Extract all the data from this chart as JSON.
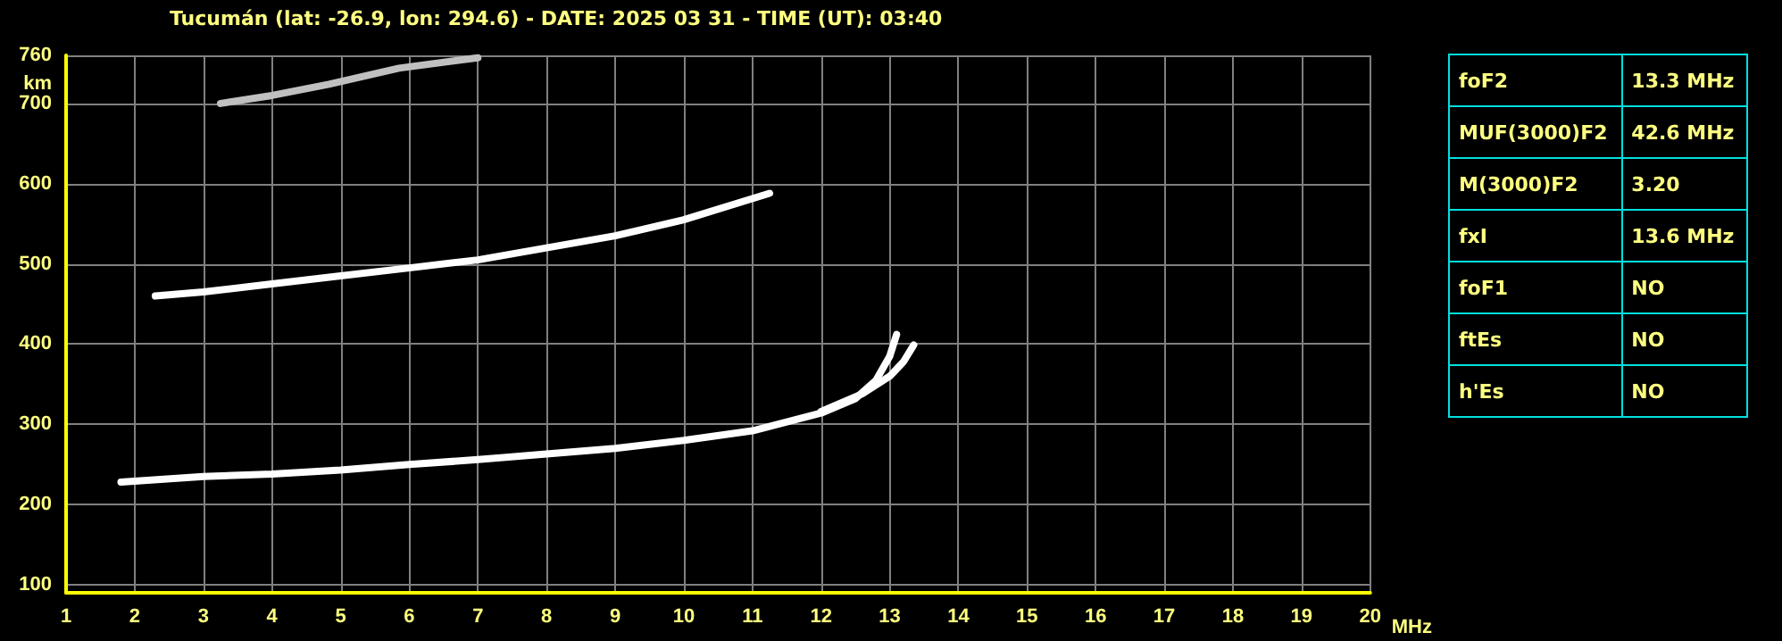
{
  "chart_data": [
    {
      "type": "line",
      "title": "Tucumán (lat: -26.9, lon: 294.6) - DATE: 2025 03 31 - TIME (UT): 03:40",
      "xlabel": "MHz",
      "ylabel": "km",
      "xlim": [
        1,
        20
      ],
      "ylim": [
        90,
        760
      ],
      "xticks": [
        1,
        2,
        3,
        4,
        5,
        6,
        7,
        8,
        9,
        10,
        11,
        12,
        13,
        14,
        15,
        16,
        17,
        18,
        19,
        20
      ],
      "yticks": [
        100,
        200,
        300,
        400,
        500,
        600,
        700,
        760
      ],
      "grid": true,
      "series": [
        {
          "color": "#ffffff",
          "x": [
            1.8,
            3,
            4,
            5,
            6,
            7,
            8,
            9,
            10,
            11,
            12,
            12.5,
            12.8,
            13.0,
            13.1
          ],
          "values": [
            228,
            235,
            238,
            243,
            250,
            256,
            263,
            270,
            280,
            292,
            314,
            332,
            355,
            385,
            412
          ]
        },
        {
          "color": "#ffffff",
          "x": [
            12.0,
            12.6,
            13.0,
            13.2,
            13.35
          ],
          "values": [
            316,
            338,
            360,
            378,
            399
          ]
        },
        {
          "color": "#ffffff",
          "x": [
            2.3,
            3,
            4,
            5,
            6,
            7,
            8,
            9,
            10,
            11.25
          ],
          "values": [
            460,
            465,
            475,
            485,
            495,
            505,
            520,
            535,
            555,
            588
          ]
        },
        {
          "color": "#c0c0c0",
          "x": [
            3.25,
            4,
            4.83,
            5.85,
            7.0
          ],
          "values": [
            700,
            710,
            724,
            744,
            757
          ]
        }
      ]
    },
    {
      "type": "other",
      "annotations": [
        "foF2",
        "13.3 MHz",
        "MUF(3000)F2",
        "42.6 MHz",
        "M(3000)F2",
        "3.20",
        "fxI",
        "13.6 MHz",
        "foF1",
        "NO",
        "ftEs",
        "NO",
        "h'Es",
        "NO"
      ]
    }
  ]
}
